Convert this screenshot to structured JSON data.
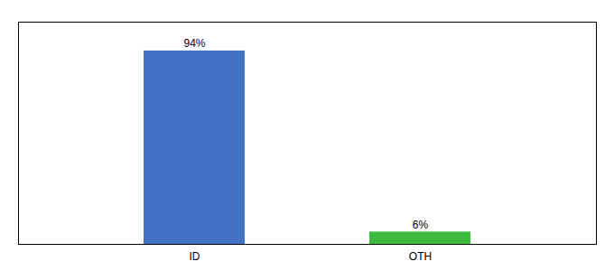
{
  "chart_data": {
    "type": "bar",
    "categories": [
      "ID",
      "OTH"
    ],
    "values": [
      94,
      6
    ],
    "value_labels": [
      "94%",
      "6%"
    ],
    "colors": [
      "#4472c4",
      "#3dbb3d"
    ],
    "ylim": [
      0,
      108
    ],
    "yticks": [],
    "tick_labels": "x",
    "data_labels": true,
    "grid": false
  }
}
